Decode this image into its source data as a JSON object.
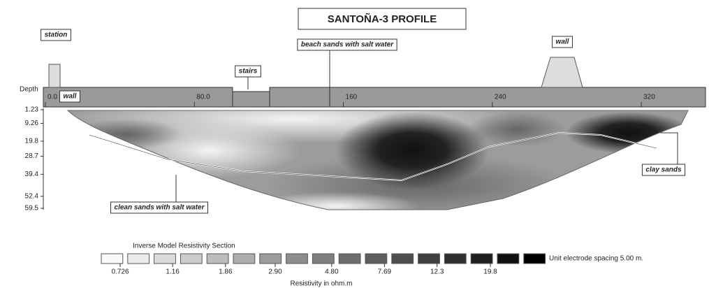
{
  "chart_data": {
    "type": "contour",
    "title": "SANTOÑA-3 PROFILE",
    "y_label": "Depth",
    "xlim": [
      0,
      355
    ],
    "xticks": [
      {
        "value": 0,
        "label": "0.0"
      },
      {
        "value": 80,
        "label": "80.0"
      },
      160,
      240,
      320
    ],
    "ylim": [
      1.23,
      59.5
    ],
    "yticks": [
      1.23,
      9.26,
      19.8,
      28.7,
      39.4,
      52.4,
      59.5
    ],
    "annotations": [
      "station",
      "stairs",
      "beach sands with salt water",
      "wall",
      "wall",
      "clean sands with salt water",
      "clay sands"
    ],
    "colorbar": {
      "title": "Inverse Model Resistivity Section",
      "label": "Resistivity in ohm.m",
      "ticks": [
        0.726,
        1.16,
        1.86,
        {
          "value": 2.9,
          "label": "2.90"
        },
        {
          "value": 4.8,
          "label": "4.80"
        },
        7.69,
        12.3,
        19.8
      ],
      "note": "Unit electrode spacing 5.00 m."
    }
  }
}
